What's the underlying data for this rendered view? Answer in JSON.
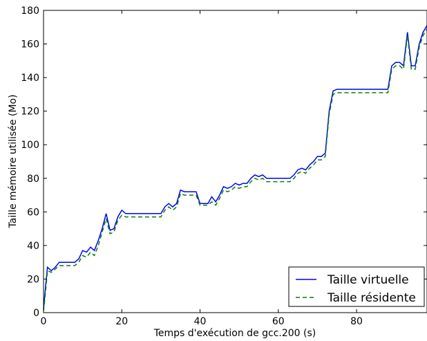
{
  "chart_data": {
    "type": "line",
    "xlabel": "Temps d'exécution de gcc.200 (s)",
    "ylabel": "Taille mémoire utilisée (Mo)",
    "xlim": [
      0,
      98
    ],
    "ylim": [
      0,
      180
    ],
    "xticks": [
      0,
      20,
      40,
      60,
      80
    ],
    "yticks": [
      0,
      20,
      40,
      60,
      80,
      100,
      120,
      140,
      160,
      180
    ],
    "grid": false,
    "legend_position": "bottom-right",
    "series": [
      {
        "name": "Taille virtuelle",
        "color": "#0000ff",
        "style": "solid",
        "points": [
          [
            0,
            2
          ],
          [
            0.5,
            15
          ],
          [
            1,
            27
          ],
          [
            2,
            25
          ],
          [
            3,
            27
          ],
          [
            4,
            30
          ],
          [
            8,
            30
          ],
          [
            9,
            32
          ],
          [
            10,
            37
          ],
          [
            11,
            36
          ],
          [
            12,
            39
          ],
          [
            13,
            37
          ],
          [
            14,
            43
          ],
          [
            15,
            50
          ],
          [
            16,
            59
          ],
          [
            17,
            49
          ],
          [
            18,
            50
          ],
          [
            19,
            57
          ],
          [
            20,
            61
          ],
          [
            21,
            59
          ],
          [
            30,
            59
          ],
          [
            31,
            63
          ],
          [
            32,
            65
          ],
          [
            33,
            63
          ],
          [
            34,
            65
          ],
          [
            35,
            73
          ],
          [
            36,
            72
          ],
          [
            39,
            72
          ],
          [
            40,
            65
          ],
          [
            42,
            65
          ],
          [
            43,
            69
          ],
          [
            44,
            66
          ],
          [
            45,
            70
          ],
          [
            46,
            75
          ],
          [
            47,
            74
          ],
          [
            48,
            75
          ],
          [
            49,
            77
          ],
          [
            50,
            76
          ],
          [
            51,
            77
          ],
          [
            52,
            77
          ],
          [
            53,
            80
          ],
          [
            54,
            82
          ],
          [
            55,
            81
          ],
          [
            56,
            82
          ],
          [
            57,
            80
          ],
          [
            63,
            80
          ],
          [
            64,
            82
          ],
          [
            65,
            85
          ],
          [
            66,
            86
          ],
          [
            67,
            85
          ],
          [
            68,
            88
          ],
          [
            69,
            90
          ],
          [
            70,
            93
          ],
          [
            71,
            93
          ],
          [
            72,
            95
          ],
          [
            73,
            120
          ],
          [
            74,
            132
          ],
          [
            75,
            133
          ],
          [
            88,
            133
          ],
          [
            89,
            147
          ],
          [
            90,
            149
          ],
          [
            91,
            149
          ],
          [
            92,
            147
          ],
          [
            93,
            167
          ],
          [
            94,
            147
          ],
          [
            95,
            147
          ],
          [
            96,
            160
          ],
          [
            97,
            167
          ],
          [
            98,
            171
          ]
        ]
      },
      {
        "name": "Taille résidente",
        "color": "#008000",
        "style": "dashed",
        "points": [
          [
            0,
            1
          ],
          [
            0.5,
            12
          ],
          [
            1,
            25
          ],
          [
            2,
            24
          ],
          [
            3,
            26
          ],
          [
            4,
            28
          ],
          [
            8,
            28
          ],
          [
            9,
            30
          ],
          [
            10,
            34
          ],
          [
            11,
            33
          ],
          [
            12,
            36
          ],
          [
            13,
            34
          ],
          [
            14,
            40
          ],
          [
            15,
            48
          ],
          [
            16,
            56
          ],
          [
            17,
            47
          ],
          [
            18,
            48
          ],
          [
            19,
            55
          ],
          [
            20,
            58
          ],
          [
            21,
            57
          ],
          [
            30,
            57
          ],
          [
            31,
            61
          ],
          [
            32,
            63
          ],
          [
            33,
            61
          ],
          [
            34,
            63
          ],
          [
            35,
            71
          ],
          [
            36,
            70
          ],
          [
            39,
            70
          ],
          [
            40,
            64
          ],
          [
            42,
            64
          ],
          [
            43,
            66
          ],
          [
            44,
            64
          ],
          [
            45,
            68
          ],
          [
            46,
            73
          ],
          [
            47,
            72
          ],
          [
            48,
            73
          ],
          [
            49,
            75
          ],
          [
            50,
            74
          ],
          [
            51,
            75
          ],
          [
            52,
            75
          ],
          [
            53,
            78
          ],
          [
            54,
            80
          ],
          [
            55,
            79
          ],
          [
            56,
            80
          ],
          [
            57,
            78
          ],
          [
            63,
            78
          ],
          [
            64,
            80
          ],
          [
            65,
            83
          ],
          [
            66,
            84
          ],
          [
            67,
            83
          ],
          [
            68,
            86
          ],
          [
            69,
            88
          ],
          [
            70,
            91
          ],
          [
            71,
            91
          ],
          [
            72,
            93
          ],
          [
            73,
            118
          ],
          [
            74,
            130
          ],
          [
            75,
            131
          ],
          [
            88,
            131
          ],
          [
            89,
            145
          ],
          [
            90,
            147
          ],
          [
            91,
            147
          ],
          [
            92,
            145
          ],
          [
            93,
            165
          ],
          [
            94,
            145
          ],
          [
            95,
            145
          ],
          [
            96,
            158
          ],
          [
            97,
            165
          ],
          [
            98,
            169
          ]
        ]
      }
    ]
  }
}
